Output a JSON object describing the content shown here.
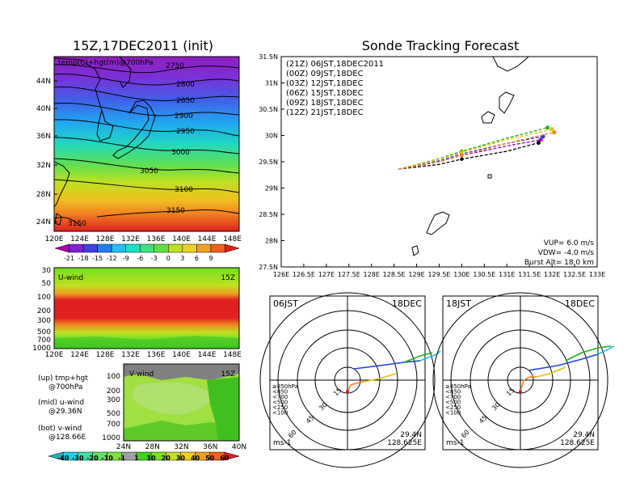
{
  "left_title": "15Z,17DEC2011 (init)",
  "right_title": "Sonde Tracking Forecast",
  "map": {
    "label": "temp(C)+hgt(m)@700hPa",
    "lat_labels": [
      "44N",
      "40N",
      "36N",
      "32N",
      "28N",
      "24N"
    ],
    "lon_labels": [
      "120E",
      "124E",
      "128E",
      "132E",
      "136E",
      "140E",
      "144E",
      "148E"
    ],
    "contour_labels": [
      "2750",
      "2800",
      "2850",
      "2900",
      "2950",
      "3000",
      "3050",
      "3100",
      "3150",
      "3150"
    ],
    "colorbar_labels": [
      "-21",
      "-18",
      "-15",
      "-12",
      "-9",
      "-6",
      "-3",
      "0",
      "3",
      "6",
      "9"
    ],
    "colorbar_colors": [
      "#b000b0",
      "#8020d0",
      "#4040e0",
      "#2080f0",
      "#20c0f0",
      "#20e0c0",
      "#40e080",
      "#60e040",
      "#c0e020",
      "#f0d020",
      "#f0a020",
      "#f06020",
      "#e02020"
    ]
  },
  "u_panel": {
    "label": "U-wind",
    "time": "15Z",
    "y_labels": [
      "30",
      "50",
      "100",
      "200",
      "300",
      "500",
      "700",
      "1000"
    ],
    "x_labels": [
      "120E",
      "124E",
      "128E",
      "132E",
      "136E",
      "140E",
      "144E",
      "148E"
    ]
  },
  "v_panel": {
    "label": "V-wind",
    "time": "15Z",
    "y_labels": [
      "100",
      "200",
      "300",
      "500",
      "700",
      "1000"
    ],
    "x_labels": [
      "24N",
      "28N",
      "32N",
      "36N",
      "40N"
    ]
  },
  "legend_text": {
    "up_1": "(up) tmp+hgt",
    "up_2": "@700hPa",
    "mid_1": "(mid) u-wind",
    "mid_2": "@29.36N",
    "bot_1": "(bot) v-wind",
    "bot_2": "@128.66E"
  },
  "wind_colorbar": {
    "labels": [
      "-40",
      "-30",
      "-20",
      "-10",
      "-1",
      "1",
      "10",
      "20",
      "30",
      "40",
      "50",
      "60"
    ],
    "colors": [
      "#20b0c0",
      "#20d0e0",
      "#40e0a0",
      "#60e060",
      "#80e040",
      "#a0a0a0",
      "#40d020",
      "#80e020",
      "#c0e020",
      "#f0d020",
      "#f0a020",
      "#f06020",
      "#e02020"
    ]
  },
  "track": {
    "y_labels": [
      "31.5N",
      "31N",
      "30.5N",
      "30N",
      "29.5N",
      "29N",
      "28.5N",
      "28N",
      "27.5N"
    ],
    "x_labels": [
      "126E",
      "126.5E",
      "127E",
      "127.5E",
      "128E",
      "128.5E",
      "129E",
      "129.5E",
      "130E",
      "130.5E",
      "131E",
      "131.5E",
      "132E",
      "132.5E",
      "133E"
    ],
    "legend": [
      {
        "text": "(21Z) 06JST,18DEC2011",
        "color": "#000000"
      },
      {
        "text": "(00Z) 09JST,18DEC",
        "color": "#a000c0"
      },
      {
        "text": "(03Z) 12JST,18DEC",
        "color": "#2040e0"
      },
      {
        "text": "(06Z) 15JST,18DEC",
        "color": "#20b020"
      },
      {
        "text": "(09Z) 18JST,18DEC",
        "color": "#e0c000"
      },
      {
        "text": "(12Z) 21JST,18DEC",
        "color": "#f08020"
      }
    ],
    "info": [
      "VUP= 6.0 m/s",
      "VDW= -4.0 m/s",
      "Burst Alt= 18.0 km"
    ]
  },
  "polar_left": {
    "time": "06JST",
    "date": "18DEC",
    "ring_labels": [
      "15",
      "30",
      "45",
      "60"
    ],
    "levels": [
      "≥850hPa",
      "<850",
      "<700",
      "<500",
      "<250",
      "<100"
    ],
    "level_colors": [
      "#e02020",
      "#f08020",
      "#e0c000",
      "#20b020",
      "#20c0e0",
      "#2040e0"
    ],
    "unit": "ms-1",
    "lat": "29.4N",
    "lon": "128.625E"
  },
  "polar_right": {
    "time": "18JST",
    "date": "18DEC",
    "ring_labels": [
      "15",
      "30",
      "45",
      "60"
    ],
    "levels": [
      "≥850hPa",
      "<850",
      "<700",
      "<500",
      "<250",
      "<100"
    ],
    "level_colors": [
      "#e02020",
      "#f08020",
      "#e0c000",
      "#20b020",
      "#20c0e0",
      "#2040e0"
    ],
    "unit": "ms-1",
    "lat": "29.4N",
    "lon": "128.625E"
  },
  "chart_data": [
    {
      "type": "heatmap",
      "title": "15Z,17DEC2011 (init)",
      "label": "temp(C)+hgt(m)@700hPa",
      "contours_m": [
        2750,
        2800,
        2850,
        2900,
        2950,
        3000,
        3050,
        3100,
        3150
      ],
      "colorbar": [
        -21,
        -18,
        -15,
        -12,
        -9,
        -6,
        -3,
        0,
        3,
        6,
        9
      ],
      "xlim": [
        120,
        149
      ],
      "ylim": [
        22,
        47
      ]
    },
    {
      "type": "line",
      "title": "Sonde Tracking Forecast",
      "xlim": [
        126,
        133
      ],
      "ylim": [
        27.5,
        31.5
      ],
      "series": [
        {
          "name": "(21Z) 06JST,18DEC2011",
          "x": [
            128.6,
            129.5,
            130.0,
            131.0,
            131.7
          ],
          "y": [
            29.36,
            29.45,
            29.55,
            29.7,
            29.86
          ]
        },
        {
          "name": "(00Z) 09JST,18DEC",
          "x": [
            128.6,
            129.5,
            130.0,
            131.0,
            131.75
          ],
          "y": [
            29.36,
            29.5,
            29.62,
            29.8,
            29.92
          ]
        },
        {
          "name": "(03Z) 12JST,18DEC",
          "x": [
            128.6,
            129.5,
            130.0,
            131.0,
            131.8
          ],
          "y": [
            29.36,
            29.52,
            29.65,
            29.85,
            29.98
          ]
        },
        {
          "name": "(06Z) 15JST,18DEC",
          "x": [
            128.6,
            129.5,
            130.0,
            131.0,
            131.9
          ],
          "y": [
            29.36,
            29.56,
            29.7,
            29.95,
            30.15
          ]
        },
        {
          "name": "(09Z) 18JST,18DEC",
          "x": [
            128.6,
            129.5,
            130.0,
            131.0,
            132.0
          ],
          "y": [
            29.36,
            29.55,
            29.68,
            29.92,
            30.12
          ]
        },
        {
          "name": "(12Z) 21JST,18DEC",
          "x": [
            128.6,
            129.5,
            130.0,
            131.0,
            132.05
          ],
          "y": [
            29.36,
            29.5,
            29.62,
            29.85,
            30.06
          ]
        }
      ]
    }
  ]
}
